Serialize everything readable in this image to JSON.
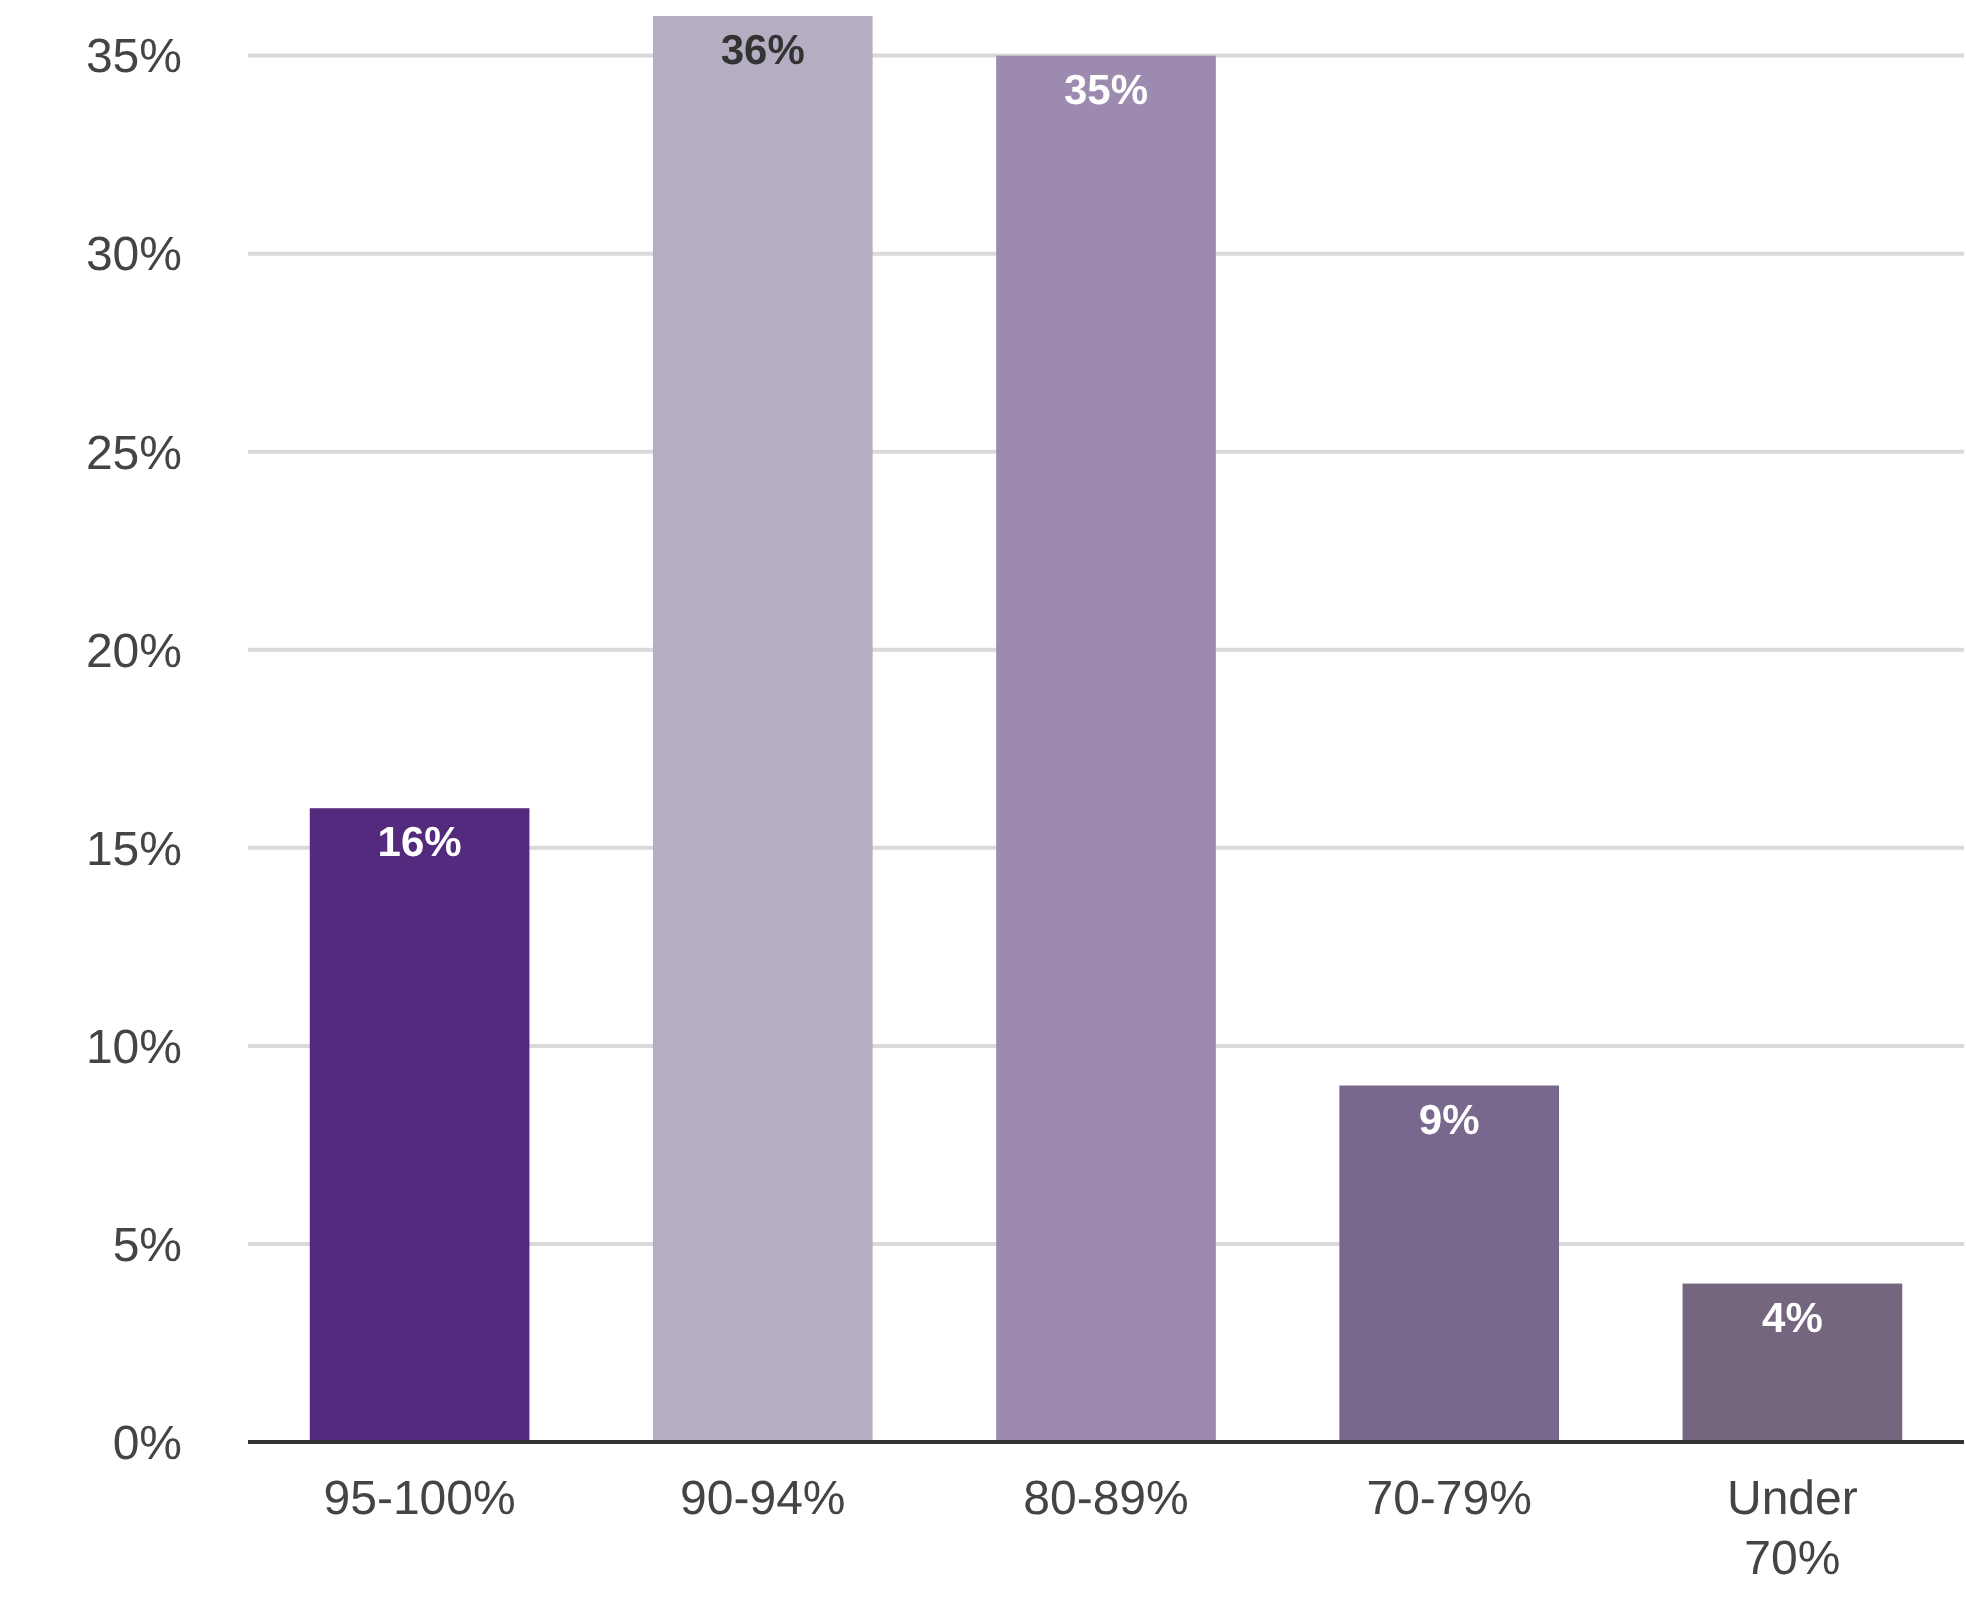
{
  "chart_data": {
    "type": "bar",
    "categories": [
      "95-100%",
      "90-94%",
      "80-89%",
      "70-79%",
      "Under 70%"
    ],
    "values": [
      16,
      36,
      35,
      9,
      4
    ],
    "colors": [
      "#542a7e",
      "#b5adc1",
      "#9c8aaf",
      "#78688d",
      "#74667f"
    ],
    "ylim": [
      0,
      36
    ],
    "yticks": [
      {
        "value": 0,
        "label": "0%"
      },
      {
        "value": 5,
        "label": "5%"
      },
      {
        "value": 10,
        "label": "10%"
      },
      {
        "value": 15,
        "label": "15%"
      },
      {
        "value": 20,
        "label": "20%"
      },
      {
        "value": 25,
        "label": "25%"
      },
      {
        "value": 30,
        "label": "30%"
      },
      {
        "value": 35,
        "label": "35%"
      }
    ],
    "value_labels": [
      "16%",
      "36%",
      "35%",
      "9%",
      "4%"
    ],
    "grid": "y"
  }
}
